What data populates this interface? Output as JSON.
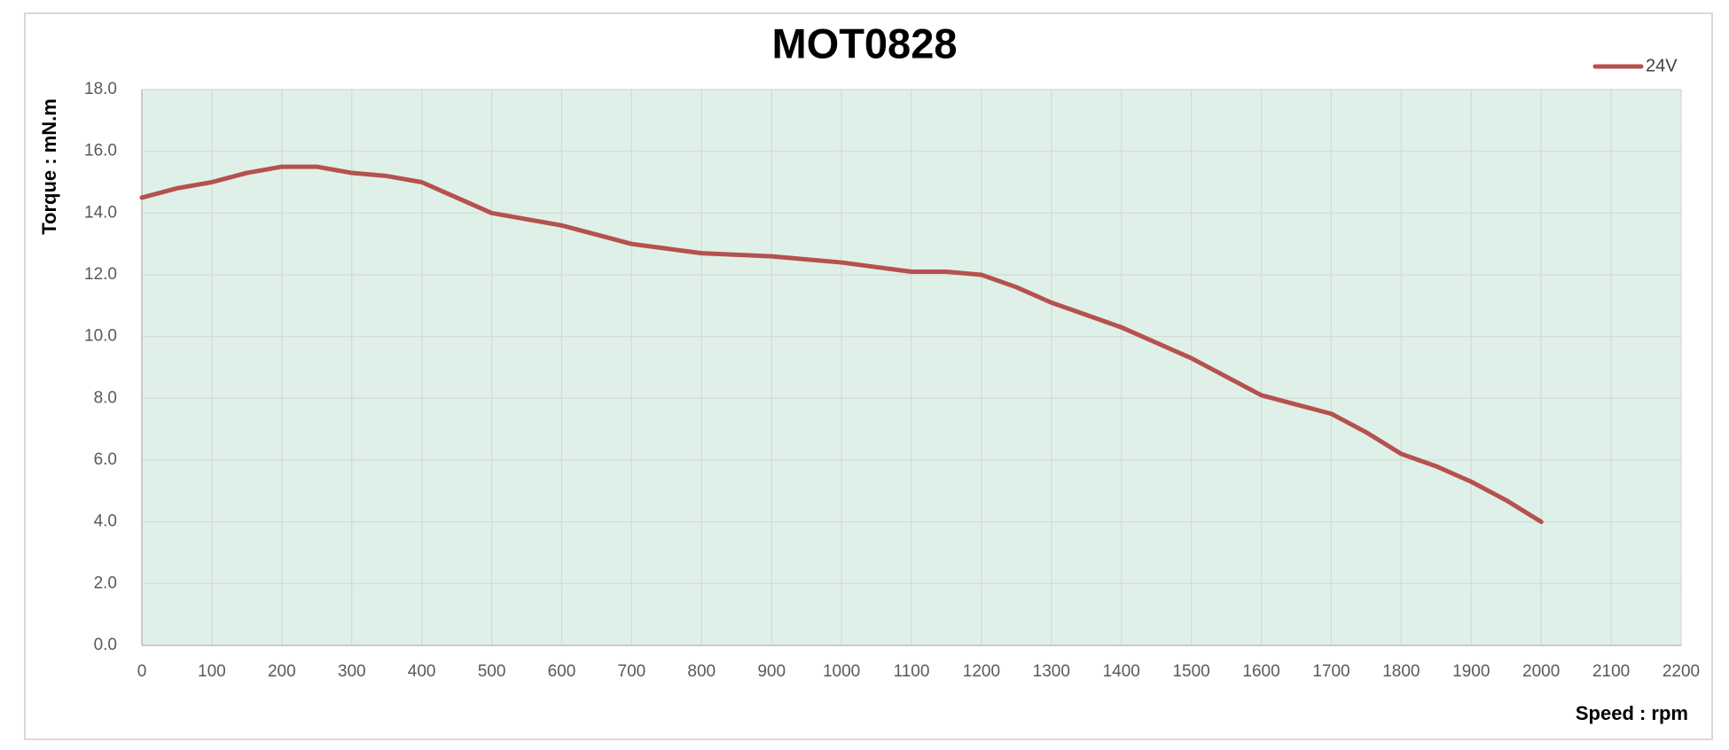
{
  "chart_data": {
    "type": "line",
    "title": "MOT0828",
    "y_label": "Torque : mN.m",
    "x_label": "Speed : rpm",
    "x": [
      0,
      50,
      100,
      150,
      200,
      250,
      300,
      350,
      400,
      450,
      500,
      550,
      600,
      650,
      700,
      750,
      800,
      850,
      900,
      950,
      1000,
      1050,
      1100,
      1150,
      1200,
      1250,
      1300,
      1350,
      1400,
      1450,
      1500,
      1550,
      1600,
      1650,
      1700,
      1750,
      1800,
      1850,
      1900,
      1950,
      2000
    ],
    "series": [
      {
        "name": "24V",
        "color": "#b5514e",
        "values": [
          14.5,
          14.8,
          15.0,
          15.3,
          15.5,
          15.5,
          15.3,
          15.2,
          15.0,
          14.5,
          14.0,
          13.8,
          13.6,
          13.3,
          13.0,
          12.85,
          12.7,
          12.65,
          12.6,
          12.5,
          12.4,
          12.25,
          12.1,
          12.1,
          12.0,
          11.6,
          11.1,
          10.7,
          10.3,
          9.8,
          9.3,
          8.7,
          8.1,
          7.8,
          7.5,
          6.9,
          6.2,
          5.8,
          5.3,
          4.7,
          4.0
        ]
      }
    ],
    "xlim": [
      0,
      2200
    ],
    "xticks": [
      0,
      100,
      200,
      300,
      400,
      500,
      600,
      700,
      800,
      900,
      1000,
      1100,
      1200,
      1300,
      1400,
      1500,
      1600,
      1700,
      1800,
      1900,
      2000,
      2100,
      2200
    ],
    "ylim": [
      0,
      18
    ],
    "yticks": [
      {
        "value": 0,
        "label": "0.0"
      },
      {
        "value": 2,
        "label": "2.0"
      },
      {
        "value": 4,
        "label": "4.0"
      },
      {
        "value": 6,
        "label": "6.0"
      },
      {
        "value": 8,
        "label": "8.0"
      },
      {
        "value": 10,
        "label": "10.0"
      },
      {
        "value": 12,
        "label": "12.0"
      },
      {
        "value": 14,
        "label": "14.0"
      },
      {
        "value": 16,
        "label": "16.0"
      },
      {
        "value": 18,
        "label": "18.0"
      }
    ],
    "grid": true,
    "plot_background": "#dff0e8",
    "legend": "top-right"
  }
}
